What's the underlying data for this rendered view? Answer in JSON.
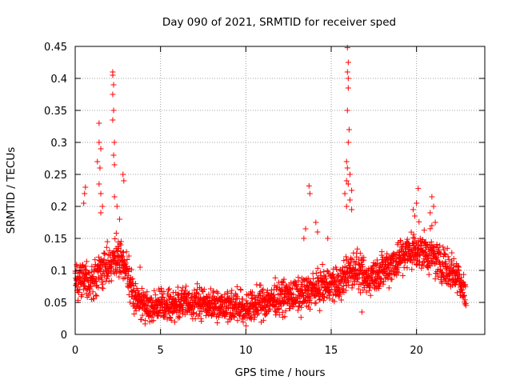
{
  "chart_data": {
    "type": "scatter",
    "title": "Day 090 of 2021, SRMTID for receiver sped",
    "xlabel": "GPS time / hours",
    "ylabel": "SRMTID / TECUs",
    "xlim": [
      0,
      24
    ],
    "ylim": [
      0,
      0.45
    ],
    "xticks": [
      0,
      5,
      10,
      15,
      20
    ],
    "xtick_labels": [
      "0",
      "5",
      "10",
      "15",
      "20"
    ],
    "yticks": [
      0,
      0.05,
      0.1,
      0.15,
      0.2,
      0.25,
      0.3,
      0.35,
      0.4,
      0.45
    ],
    "ytick_labels": [
      "0",
      "0.05",
      "0.1",
      "0.15",
      "0.2",
      "0.25",
      "0.3",
      "0.35",
      "0.4",
      "0.45"
    ],
    "grid": true,
    "marker": "+",
    "series": [
      {
        "name": "SRMTID",
        "color": "#ff0000",
        "profile_x": [
          0,
          0.5,
          1,
          1.5,
          2,
          2.5,
          3,
          3.5,
          4,
          5,
          6,
          7,
          8,
          9,
          10,
          11,
          12,
          13,
          14,
          15,
          15.5,
          16,
          16.5,
          17,
          18,
          19,
          20,
          21,
          22,
          22.5,
          22.9
        ],
        "profile_y": [
          0.09,
          0.09,
          0.08,
          0.1,
          0.11,
          0.12,
          0.1,
          0.06,
          0.045,
          0.045,
          0.048,
          0.05,
          0.048,
          0.047,
          0.04,
          0.05,
          0.058,
          0.06,
          0.07,
          0.08,
          0.075,
          0.1,
          0.1,
          0.085,
          0.1,
          0.12,
          0.135,
          0.12,
          0.1,
          0.09,
          0.055
        ],
        "spread": 0.032,
        "n_points": 2100,
        "spikes": [
          {
            "x": 2.2,
            "y": 0.41
          },
          {
            "x": 2.2,
            "y": 0.405
          },
          {
            "x": 2.25,
            "y": 0.39
          },
          {
            "x": 2.2,
            "y": 0.375
          },
          {
            "x": 2.25,
            "y": 0.35
          },
          {
            "x": 2.2,
            "y": 0.335
          },
          {
            "x": 1.4,
            "y": 0.33
          },
          {
            "x": 2.3,
            "y": 0.3
          },
          {
            "x": 2.25,
            "y": 0.28
          },
          {
            "x": 1.4,
            "y": 0.3
          },
          {
            "x": 1.5,
            "y": 0.29
          },
          {
            "x": 1.3,
            "y": 0.27
          },
          {
            "x": 2.3,
            "y": 0.265
          },
          {
            "x": 1.45,
            "y": 0.26
          },
          {
            "x": 2.8,
            "y": 0.25
          },
          {
            "x": 2.85,
            "y": 0.24
          },
          {
            "x": 1.4,
            "y": 0.235
          },
          {
            "x": 0.6,
            "y": 0.23
          },
          {
            "x": 0.55,
            "y": 0.22
          },
          {
            "x": 1.5,
            "y": 0.22
          },
          {
            "x": 2.3,
            "y": 0.215
          },
          {
            "x": 0.5,
            "y": 0.205
          },
          {
            "x": 1.6,
            "y": 0.2
          },
          {
            "x": 2.45,
            "y": 0.2
          },
          {
            "x": 1.5,
            "y": 0.19
          },
          {
            "x": 2.6,
            "y": 0.18
          },
          {
            "x": 15.95,
            "y": 0.448
          },
          {
            "x": 16.0,
            "y": 0.425
          },
          {
            "x": 15.95,
            "y": 0.41
          },
          {
            "x": 16.0,
            "y": 0.4
          },
          {
            "x": 16.0,
            "y": 0.385
          },
          {
            "x": 15.95,
            "y": 0.35
          },
          {
            "x": 16.05,
            "y": 0.32
          },
          {
            "x": 16.0,
            "y": 0.3
          },
          {
            "x": 15.9,
            "y": 0.27
          },
          {
            "x": 15.95,
            "y": 0.26
          },
          {
            "x": 16.1,
            "y": 0.25
          },
          {
            "x": 15.9,
            "y": 0.24
          },
          {
            "x": 16.0,
            "y": 0.235
          },
          {
            "x": 16.2,
            "y": 0.225
          },
          {
            "x": 15.8,
            "y": 0.22
          },
          {
            "x": 16.1,
            "y": 0.21
          },
          {
            "x": 15.9,
            "y": 0.2
          },
          {
            "x": 16.2,
            "y": 0.195
          },
          {
            "x": 13.7,
            "y": 0.232
          },
          {
            "x": 13.75,
            "y": 0.22
          },
          {
            "x": 14.1,
            "y": 0.175
          },
          {
            "x": 13.5,
            "y": 0.165
          },
          {
            "x": 14.2,
            "y": 0.16
          },
          {
            "x": 13.4,
            "y": 0.15
          },
          {
            "x": 14.8,
            "y": 0.15
          },
          {
            "x": 20.1,
            "y": 0.228
          },
          {
            "x": 20.9,
            "y": 0.215
          },
          {
            "x": 20.0,
            "y": 0.205
          },
          {
            "x": 21.0,
            "y": 0.2
          },
          {
            "x": 19.8,
            "y": 0.195
          },
          {
            "x": 20.8,
            "y": 0.19
          },
          {
            "x": 19.9,
            "y": 0.185
          },
          {
            "x": 21.1,
            "y": 0.175
          },
          {
            "x": 20.9,
            "y": 0.17
          },
          {
            "x": 3.8,
            "y": 0.105
          },
          {
            "x": 16.8,
            "y": 0.035
          }
        ]
      }
    ]
  }
}
